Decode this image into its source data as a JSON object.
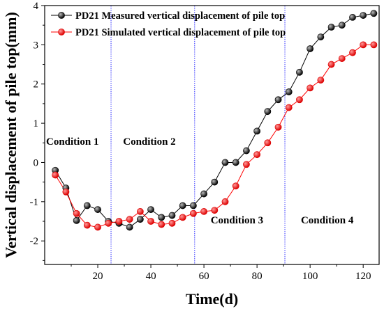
{
  "chart_data": {
    "type": "line",
    "xlabel": "Time(d)",
    "ylabel": "Vertical displacement of pile top(mm)",
    "xlim": [
      0,
      126
    ],
    "ylim": [
      -2.6,
      4
    ],
    "x_ticks": [
      20,
      40,
      60,
      80,
      100,
      120
    ],
    "y_ticks": [
      -2,
      -1,
      0,
      1,
      2,
      3,
      4
    ],
    "grid": false,
    "legend_position": "top-right",
    "series": [
      {
        "name": "PD21 Measured vertical displacement of pile top",
        "color": "#000000",
        "marker": "circle",
        "x": [
          4,
          8,
          12,
          16,
          20,
          24,
          28,
          32,
          36,
          40,
          44,
          48,
          52,
          56,
          60,
          64,
          68,
          72,
          76,
          80,
          84,
          88,
          92,
          96,
          100,
          104,
          108,
          112,
          116,
          120,
          124
        ],
        "y": [
          -0.2,
          -0.65,
          -1.48,
          -1.1,
          -1.2,
          -1.5,
          -1.55,
          -1.65,
          -1.45,
          -1.2,
          -1.4,
          -1.35,
          -1.1,
          -1.1,
          -0.8,
          -0.5,
          0.0,
          0.0,
          0.3,
          0.8,
          1.3,
          1.6,
          1.8,
          2.3,
          2.9,
          3.2,
          3.45,
          3.5,
          3.7,
          3.75,
          3.8
        ]
      },
      {
        "name": "PD21 Simulated vertical displacement of pile top",
        "color": "#ff0000",
        "marker": "circle",
        "x": [
          4,
          8,
          12,
          16,
          20,
          24,
          28,
          32,
          36,
          40,
          44,
          48,
          52,
          56,
          60,
          64,
          68,
          72,
          76,
          80,
          84,
          88,
          92,
          96,
          100,
          104,
          108,
          112,
          116,
          120,
          124
        ],
        "y": [
          -0.32,
          -0.75,
          -1.3,
          -1.6,
          -1.65,
          -1.55,
          -1.5,
          -1.45,
          -1.25,
          -1.5,
          -1.58,
          -1.55,
          -1.4,
          -1.3,
          -1.25,
          -1.22,
          -1.0,
          -0.6,
          -0.05,
          0.2,
          0.5,
          0.9,
          1.4,
          1.6,
          1.9,
          2.1,
          2.5,
          2.65,
          2.8,
          3.0,
          3.0
        ]
      }
    ],
    "vertical_lines": [
      {
        "x": 25,
        "color": "#3333ff"
      },
      {
        "x": 56.5,
        "color": "#3333ff"
      },
      {
        "x": 90.5,
        "color": "#3333ff"
      }
    ],
    "annotations": [
      {
        "text": "Condition 1",
        "x": 0,
        "y": 0.45
      },
      {
        "text": "Condition 2",
        "x": 29,
        "y": 0.45
      },
      {
        "text": "Condition 3",
        "x": 62,
        "y": -1.55
      },
      {
        "text": "Condition 4",
        "x": 96,
        "y": -1.55
      }
    ]
  }
}
